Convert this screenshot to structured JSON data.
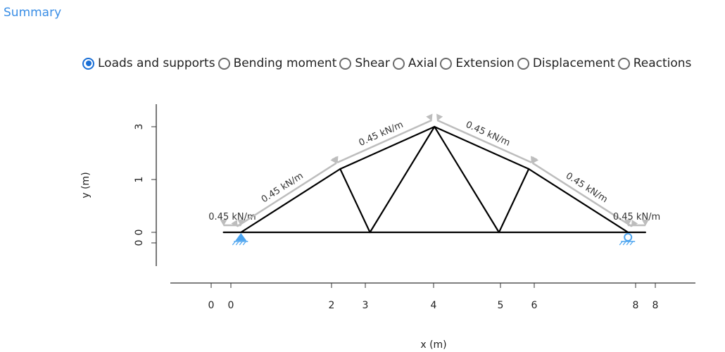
{
  "summary_link": "Summary",
  "view_options": {
    "selected": 0,
    "items": [
      "Loads and supports",
      "Bending moment",
      "Shear",
      "Axial",
      "Extension",
      "Displacement",
      "Reactions"
    ]
  },
  "colors": {
    "accent": "#1a6fd6",
    "link": "#3a8ee6",
    "support": "#4aa3ef",
    "load": "#bdbdbd",
    "member": "#000000"
  },
  "chart_data": {
    "type": "truss-diagram",
    "xlabel": "x (m)",
    "ylabel": "y (m)",
    "x_ticks": [
      "0",
      "0",
      "2",
      "3",
      "4",
      "5",
      "6",
      "8",
      "8"
    ],
    "y_ticks": [
      "3",
      "1",
      "0",
      "0"
    ],
    "nodes": {
      "LE": [
        0.25,
        0
      ],
      "A": [
        0.6,
        0
      ],
      "B": [
        2.6,
        1.8
      ],
      "C": [
        3.2,
        0
      ],
      "D": [
        4.5,
        3
      ],
      "E": [
        5.8,
        0
      ],
      "F": [
        6.4,
        1.8
      ],
      "G": [
        8.4,
        0
      ],
      "RE": [
        8.75,
        0
      ]
    },
    "members": [
      [
        "LE",
        "A"
      ],
      [
        "A",
        "B"
      ],
      [
        "B",
        "D"
      ],
      [
        "D",
        "F"
      ],
      [
        "F",
        "G"
      ],
      [
        "G",
        "RE"
      ],
      [
        "A",
        "G"
      ],
      [
        "B",
        "C"
      ],
      [
        "C",
        "D"
      ],
      [
        "D",
        "E"
      ],
      [
        "E",
        "F"
      ]
    ],
    "loads": [
      {
        "label": "0.45 kN/m",
        "from": "LE",
        "to": "A"
      },
      {
        "label": "0.45 kN/m",
        "from": "A",
        "to": "B"
      },
      {
        "label": "0.45 kN/m",
        "from": "B",
        "to": "D"
      },
      {
        "label": "0.45 kN/m",
        "from": "D",
        "to": "F"
      },
      {
        "label": "0.45 kN/m",
        "from": "F",
        "to": "G"
      },
      {
        "label": "0.45 kN/m",
        "from": "G",
        "to": "RE"
      }
    ],
    "supports": [
      {
        "node": "A",
        "type": "pin"
      },
      {
        "node": "G",
        "type": "roller"
      }
    ]
  }
}
